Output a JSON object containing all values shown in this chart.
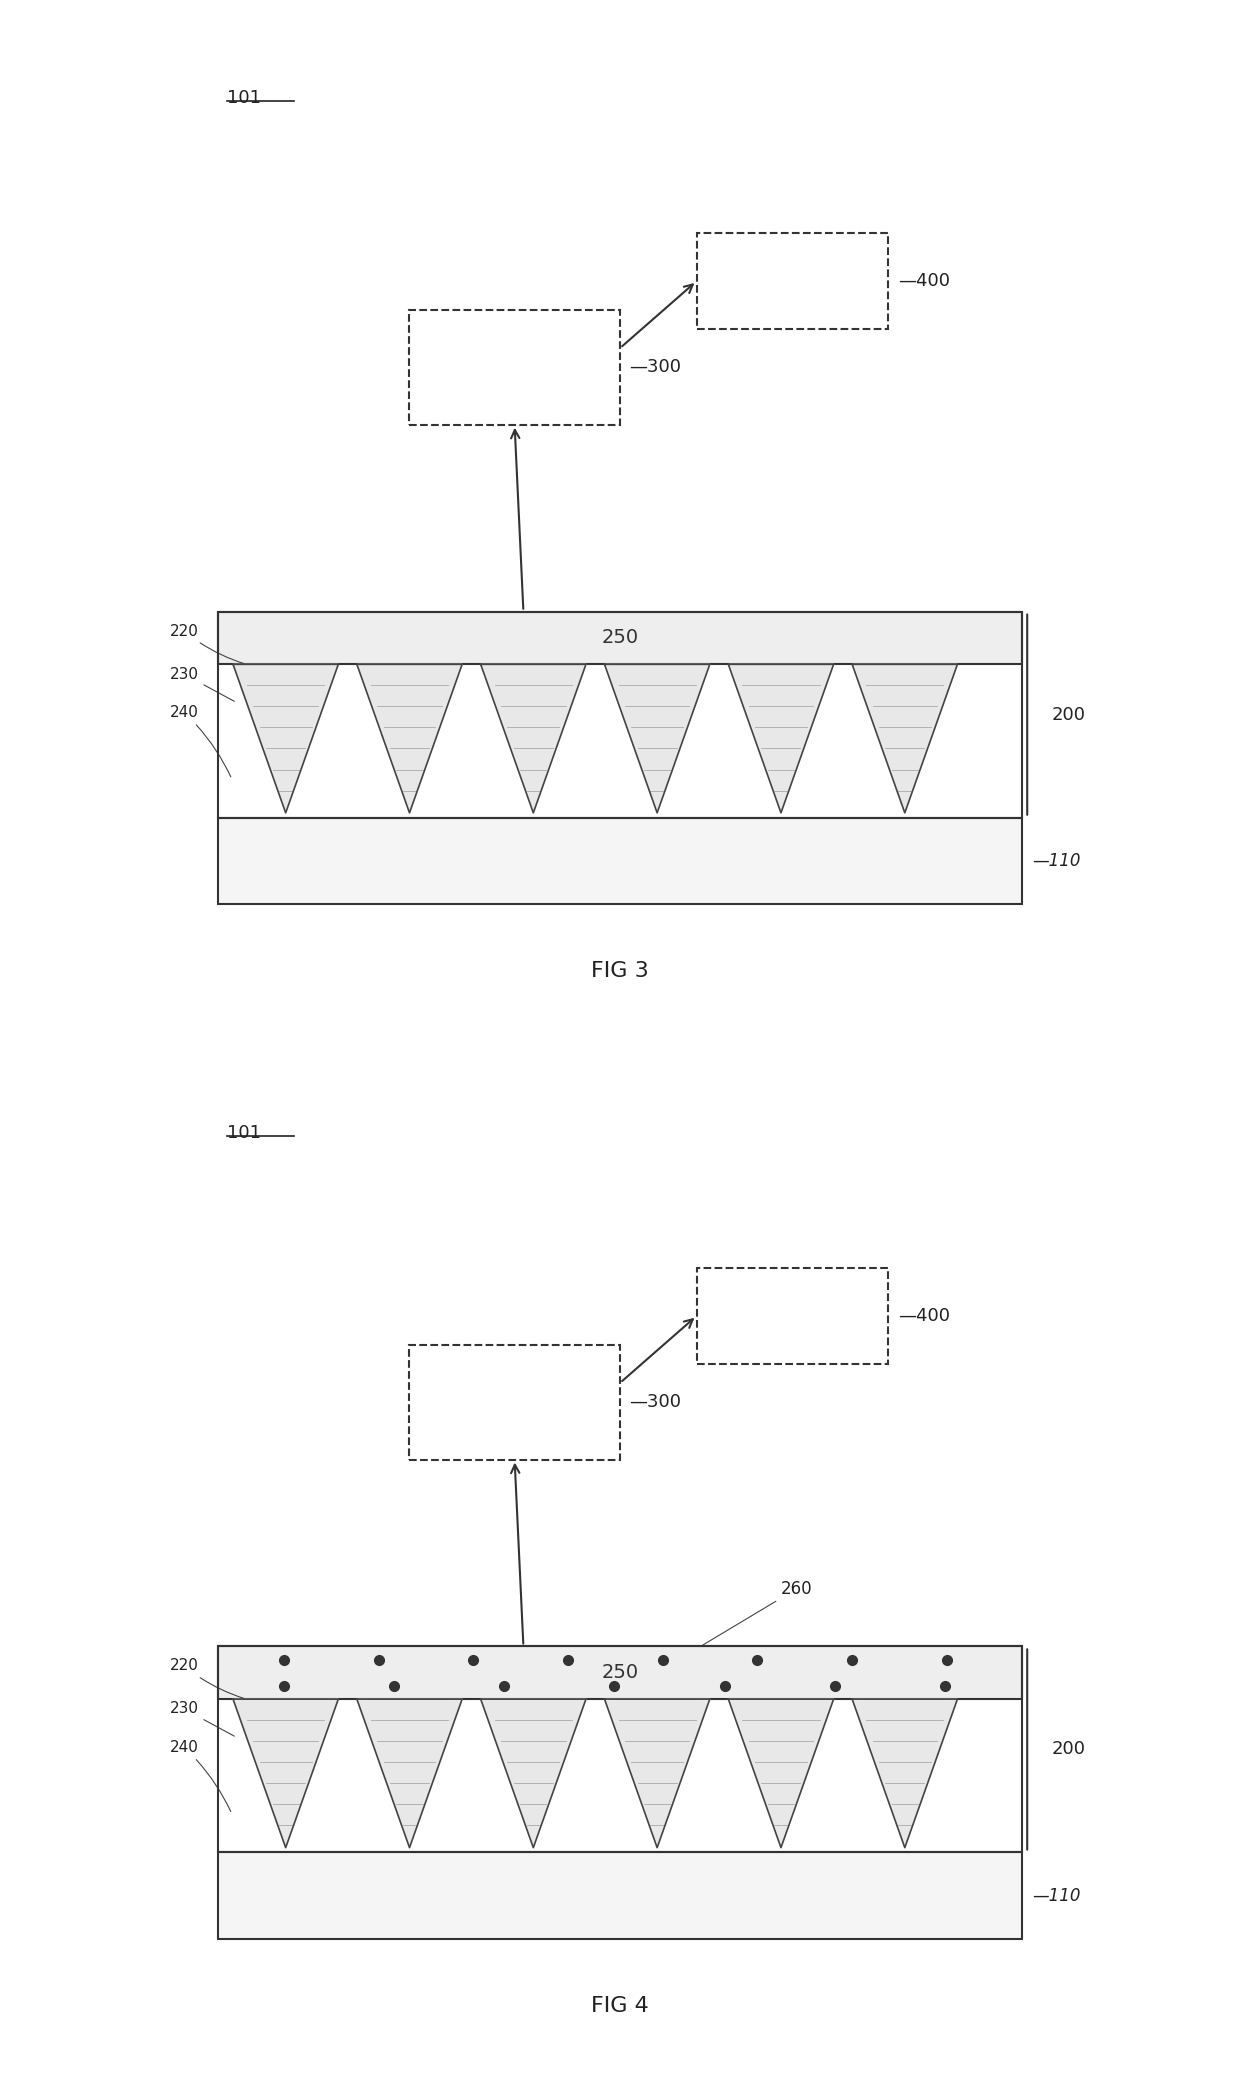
{
  "fig_width": 12.4,
  "fig_height": 20.76,
  "bg_color": "#ffffff",
  "label_color": "#222222",
  "box_edge_color": "#333333",
  "needle_fill": "#d0d0d0",
  "needle_edge": "#555555",
  "hatch_color": "#888888",
  "dot_color": "#333333",
  "fig3": {
    "label": "FIG 3",
    "ref_101": "101",
    "box_300": "300",
    "box_400": "400",
    "box_250": "250",
    "box_110": "110",
    "label_200": "200",
    "label_220": "220",
    "label_230": "230",
    "label_240": "240",
    "num_needles": 6
  },
  "fig4": {
    "label": "FIG 4",
    "ref_101": "101",
    "box_300": "300",
    "box_400": "400",
    "box_250": "250",
    "box_110": "110",
    "label_200": "200",
    "label_220": "220",
    "label_230": "230",
    "label_240": "240",
    "label_260": "260",
    "num_needles": 6,
    "num_dots_row1": 8,
    "num_dots_row2": 7
  }
}
